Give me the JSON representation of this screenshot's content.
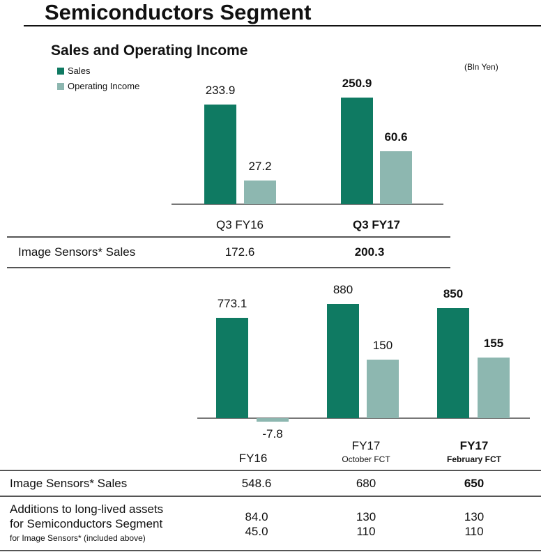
{
  "title": "Semiconductors Segment",
  "subtitle": "Sales and Operating Income",
  "unit": "(Bln Yen)",
  "colors": {
    "sales": "#0f7a62",
    "operating_income": "#8db7b0"
  },
  "chart_data": [
    {
      "type": "bar",
      "title": "Sales and Operating Income",
      "categories": [
        "Q3 FY16",
        "Q3 FY17"
      ],
      "legend": [
        "Sales",
        "Operating Income"
      ],
      "legend_position": "top-left",
      "series": [
        {
          "name": "Sales",
          "values": [
            233.9,
            250.9
          ],
          "labels": [
            "233.9",
            "250.9"
          ]
        },
        {
          "name": "Operating Income",
          "values": [
            27.2,
            60.6
          ],
          "labels": [
            "27.2",
            "60.6"
          ]
        }
      ]
    },
    {
      "type": "bar",
      "categories": [
        "FY16",
        "FY17",
        "FY17"
      ],
      "category_sublabels": [
        "",
        "October FCT",
        "February FCT"
      ],
      "series": [
        {
          "name": "Sales",
          "values": [
            773.1,
            880,
            850
          ],
          "labels": [
            "773.1",
            "880",
            "850"
          ]
        },
        {
          "name": "Operating Income",
          "values": [
            -7.8,
            150,
            155
          ],
          "labels": [
            "-7.8",
            "150",
            "155"
          ]
        }
      ]
    }
  ],
  "table1": {
    "row_label": "Image Sensors* Sales",
    "values": [
      "172.6",
      "200.3"
    ]
  },
  "table2": {
    "row1_label": "Image Sensors* Sales",
    "row1_values": [
      "548.6",
      "680",
      "650"
    ],
    "row2_label_1": "Additions to long-lived assets",
    "row2_label_2": "for Semiconductors Segment",
    "row2_label_3": "for Image Sensors* (included above)",
    "row2_values_a": [
      "84.0",
      "130",
      "130"
    ],
    "row2_values_b": [
      "45.0",
      "110",
      "110"
    ]
  }
}
